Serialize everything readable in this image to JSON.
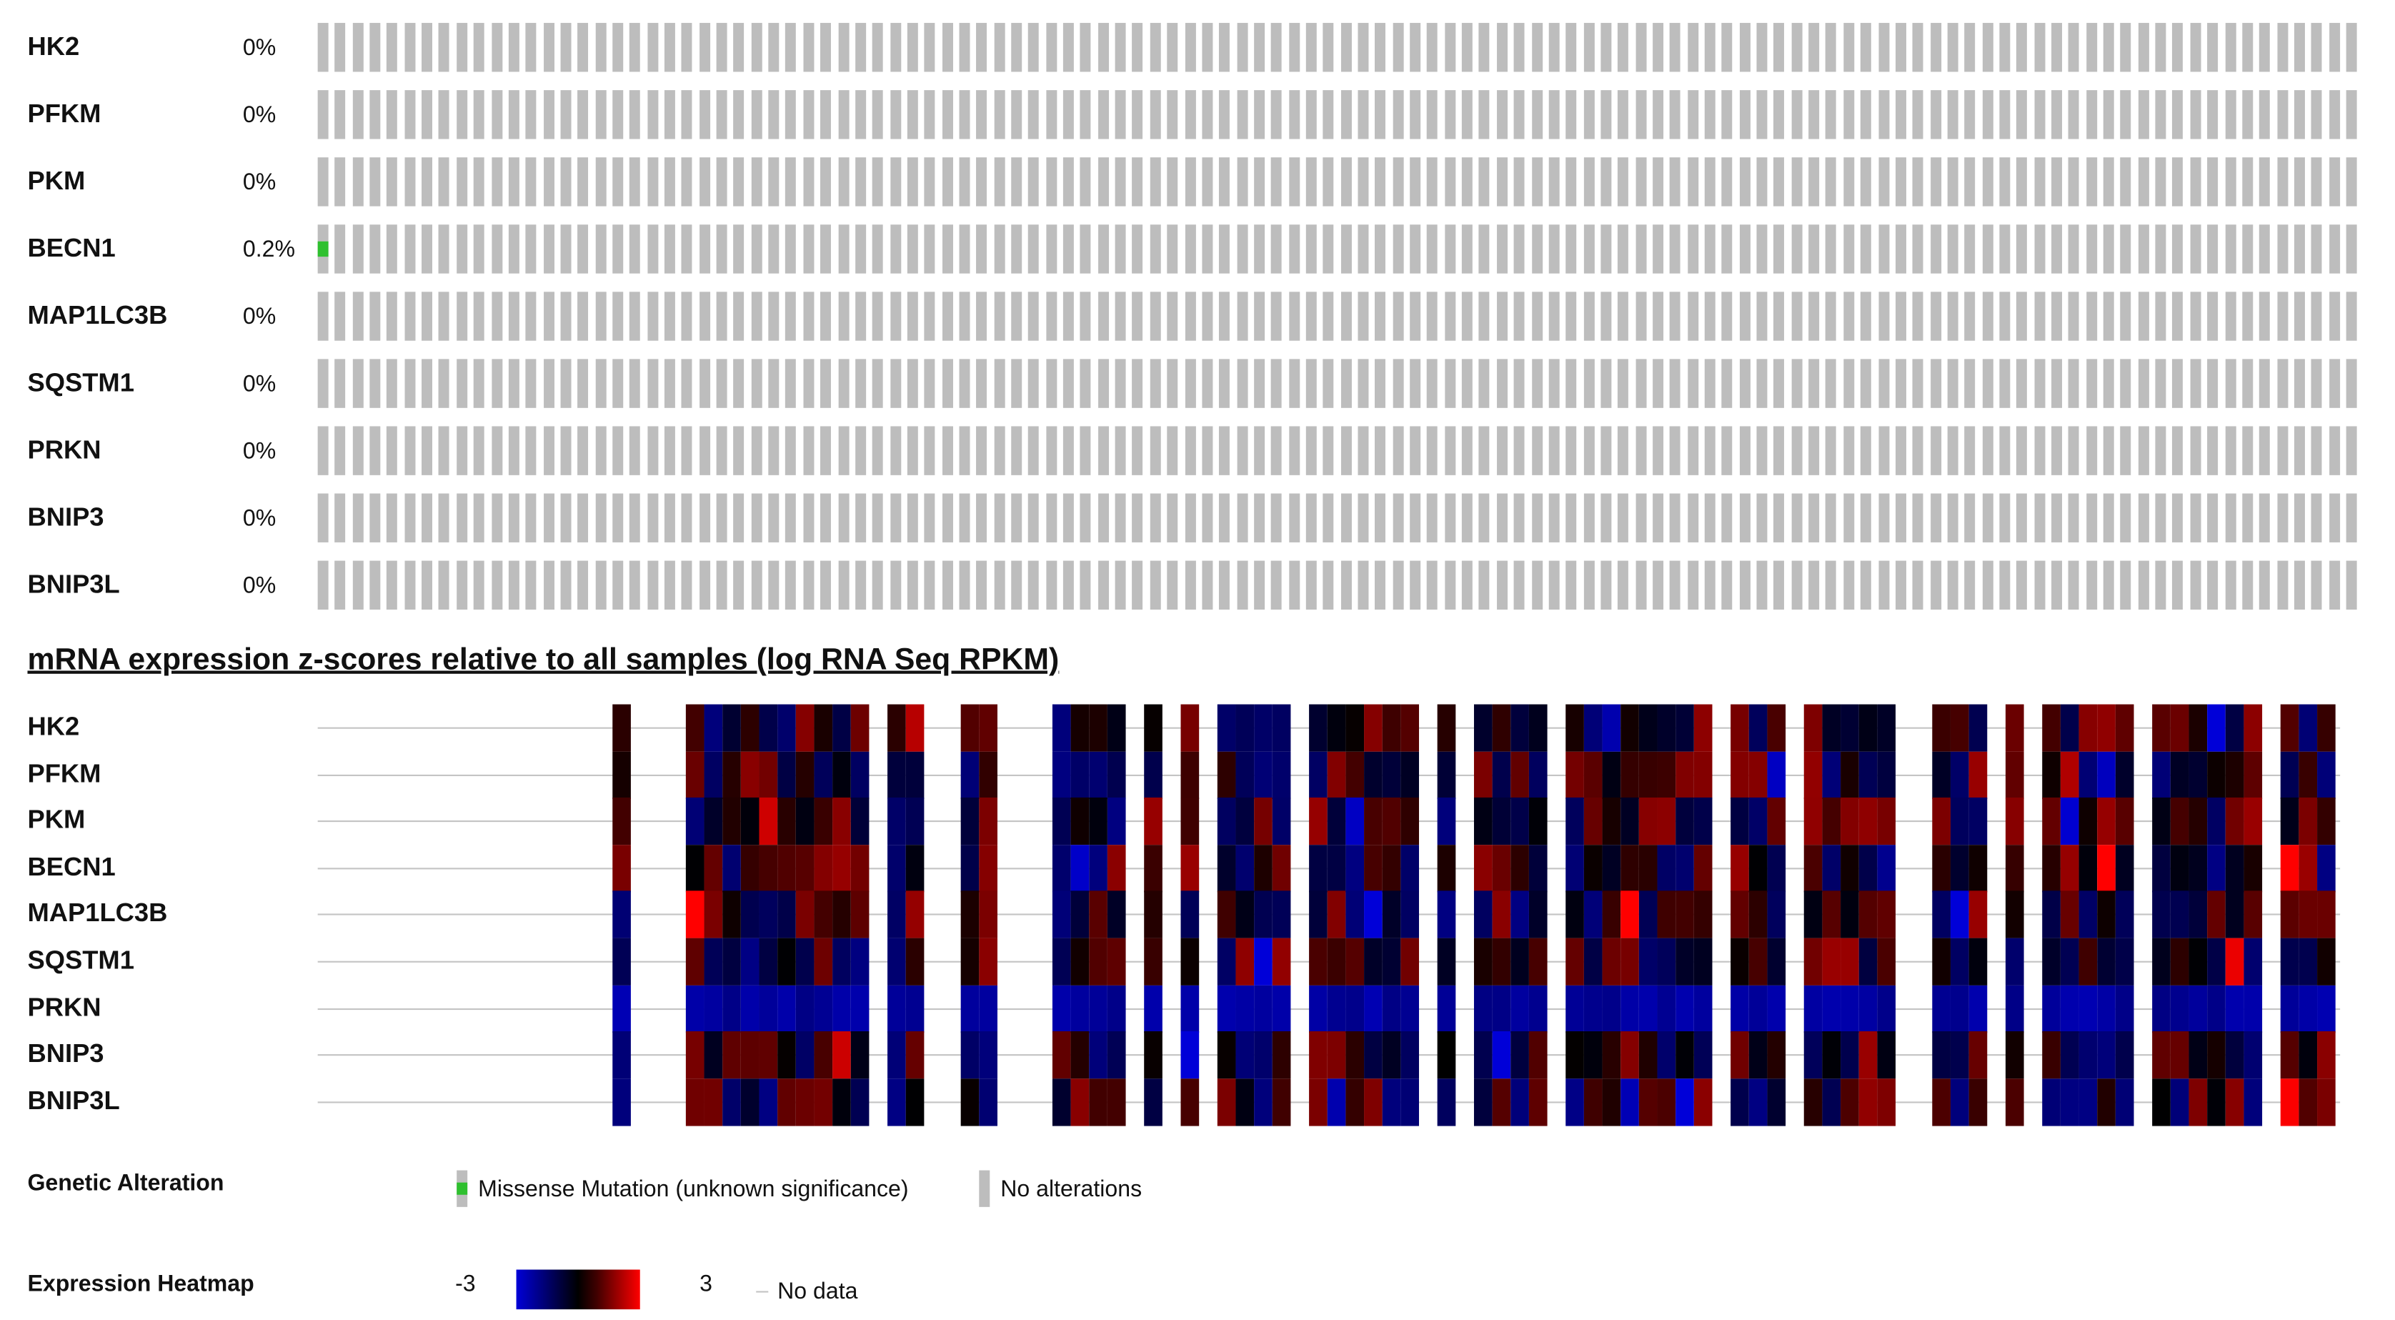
{
  "genes": [
    "HK2",
    "PFKM",
    "PKM",
    "BECN1",
    "MAP1LC3B",
    "SQSTM1",
    "PRKN",
    "BNIP3",
    "BNIP3L"
  ],
  "percentages": [
    "0%",
    "0%",
    "0%",
    "0.2%",
    "0%",
    "0%",
    "0%",
    "0%",
    "0%"
  ],
  "mutations": [
    {
      "gene_index": 3,
      "sample_index": 0,
      "type": "Missense Mutation (unknown significance)"
    }
  ],
  "mrna_title": "mRNA expression z-scores relative to all samples (log RNA Seq RPKM)",
  "legend": {
    "genetic_alteration_label": "Genetic Alteration",
    "missense_label": "Missense Mutation (unknown significance)",
    "no_alterations_label": "No alterations",
    "expression_heatmap_label": "Expression Heatmap",
    "scale_min": "-3",
    "scale_max": "3",
    "no_data_label": "No data"
  },
  "colors": {
    "no_alteration": "#bdbdbd",
    "missense": "#2fc02f",
    "low": "#0000d8",
    "mid": "#000000",
    "high": "#ff0000",
    "grid_line": "#c4c4c4"
  }
}
